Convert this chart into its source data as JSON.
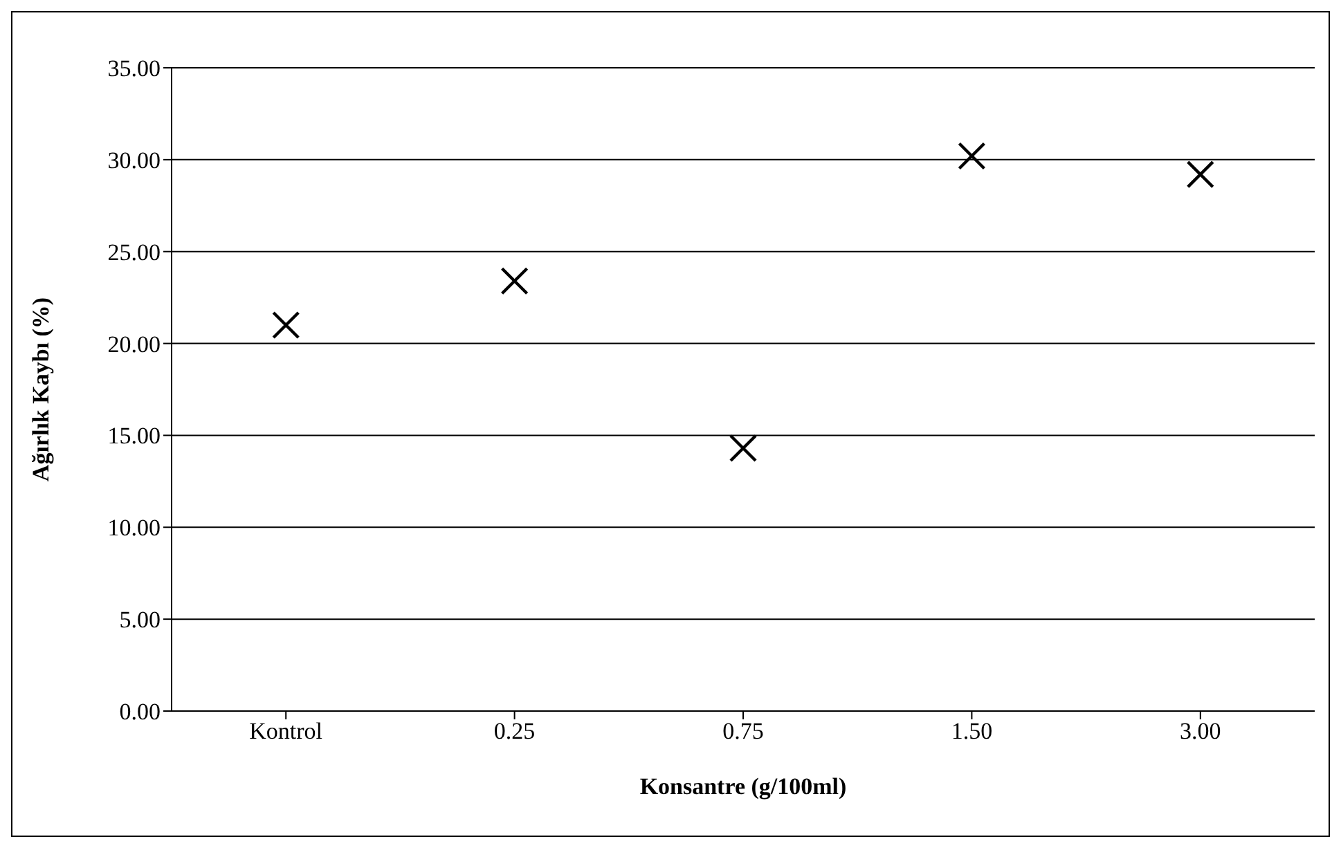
{
  "chart_data": {
    "type": "scatter",
    "xlabel": "Konsantre (g/100ml)",
    "ylabel": "Ağırlık Kaybı (%)",
    "categories": [
      "Kontrol",
      "0.25",
      "0.75",
      "1.50",
      "3.00"
    ],
    "values": [
      21.0,
      23.4,
      14.3,
      30.2,
      29.2
    ],
    "color": "#000000",
    "ylim": [
      0,
      35
    ],
    "yticks": [
      {
        "value": 0,
        "label": "0.00"
      },
      {
        "value": 5,
        "label": "5.00"
      },
      {
        "value": 10,
        "label": "10.00"
      },
      {
        "value": 15,
        "label": "15.00"
      },
      {
        "value": 20,
        "label": "20.00"
      },
      {
        "value": 25,
        "label": "25.00"
      },
      {
        "value": 30,
        "label": "30.00"
      },
      {
        "value": 35,
        "label": "35.00"
      }
    ],
    "grid": "y",
    "marker": "cross"
  }
}
